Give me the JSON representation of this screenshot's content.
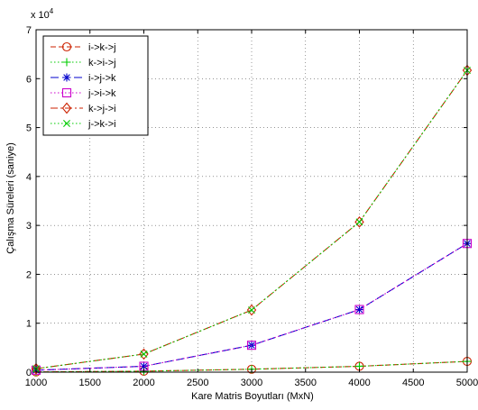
{
  "chart_data": {
    "type": "line",
    "title": "",
    "xlabel": "Kare Matris Boyutları (MxN)",
    "ylabel": "Çalışma Süreleri (saniye)",
    "y_multiplier_label": "x 10",
    "y_multiplier_exponent": "4",
    "x": [
      1000,
      2000,
      3000,
      4000,
      5000
    ],
    "xlim": [
      1000,
      5000
    ],
    "ylim": [
      0,
      7
    ],
    "x_ticks": [
      "1000",
      "1500",
      "2000",
      "2500",
      "3000",
      "3500",
      "4000",
      "4500",
      "5000"
    ],
    "y_ticks": [
      "0",
      "1",
      "2",
      "3",
      "4",
      "5",
      "6",
      "7"
    ],
    "grid": true,
    "legend_position": "top-left",
    "series": [
      {
        "name": "i->k->j",
        "color": "#cc2200",
        "marker": "circle",
        "dash": "6,3",
        "values": [
          0.005,
          0.02,
          0.06,
          0.12,
          0.22
        ]
      },
      {
        "name": "k->i->j",
        "color": "#00cc00",
        "marker": "plus",
        "dash": "1.5,2.5",
        "values": [
          0.005,
          0.02,
          0.06,
          0.12,
          0.22
        ]
      },
      {
        "name": "i->j->k",
        "color": "#0000cc",
        "marker": "star",
        "dash": "9,4",
        "values": [
          0.04,
          0.12,
          0.55,
          1.28,
          2.63
        ]
      },
      {
        "name": "j->i->k",
        "color": "#cc00cc",
        "marker": "square",
        "dash": "1.5,2.5",
        "values": [
          0.04,
          0.12,
          0.55,
          1.28,
          2.63
        ]
      },
      {
        "name": "k->j->i",
        "color": "#cc2200",
        "marker": "diamond",
        "dash": "8,3,2,3",
        "values": [
          0.07,
          0.37,
          1.27,
          3.07,
          6.17
        ]
      },
      {
        "name": "j->k->i",
        "color": "#00cc00",
        "marker": "x",
        "dash": "1.5,2.5",
        "values": [
          0.07,
          0.37,
          1.27,
          3.07,
          6.17
        ]
      }
    ]
  }
}
